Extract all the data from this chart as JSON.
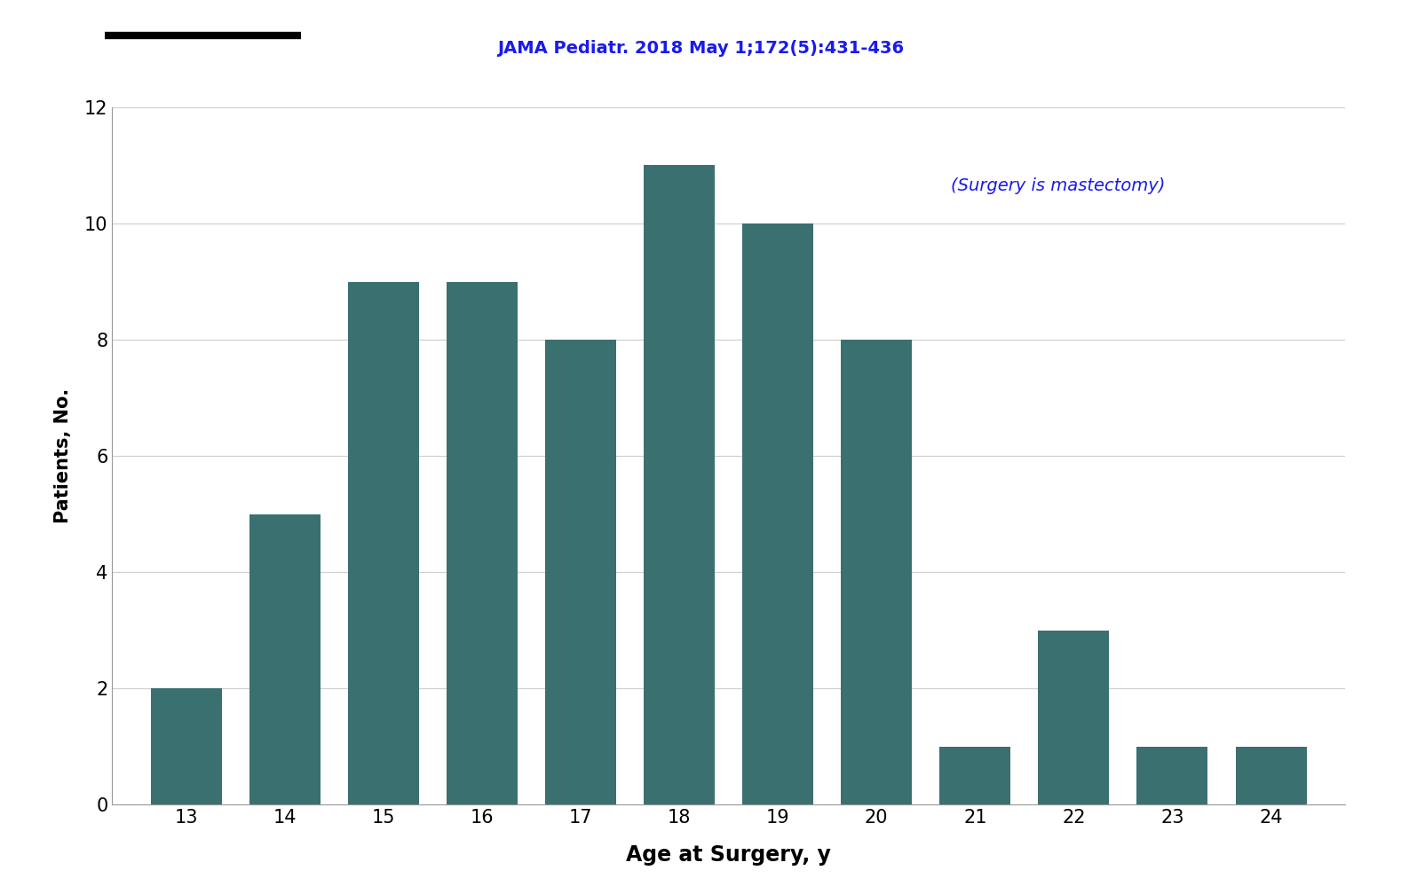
{
  "ages": [
    13,
    14,
    15,
    16,
    17,
    18,
    19,
    20,
    21,
    22,
    23,
    24
  ],
  "values": [
    2,
    5,
    9,
    9,
    8,
    11,
    10,
    8,
    1,
    3,
    1,
    1
  ],
  "bar_color": "#3a7070",
  "xlabel": "Age at Surgery, y",
  "ylabel": "Patients, No.",
  "ylim": [
    0,
    12
  ],
  "yticks": [
    0,
    2,
    4,
    6,
    8,
    10,
    12
  ],
  "title": "JAMA Pediatr. 2018 May 1;172(5):431-436",
  "title_color": "#1a1aee",
  "annotation": "(Surgery is mastectomy)",
  "annotation_color": "#1a1aee",
  "background_color": "#ffffff",
  "bar_width": 0.72,
  "xlim_left": 12.25,
  "xlim_right": 24.75
}
